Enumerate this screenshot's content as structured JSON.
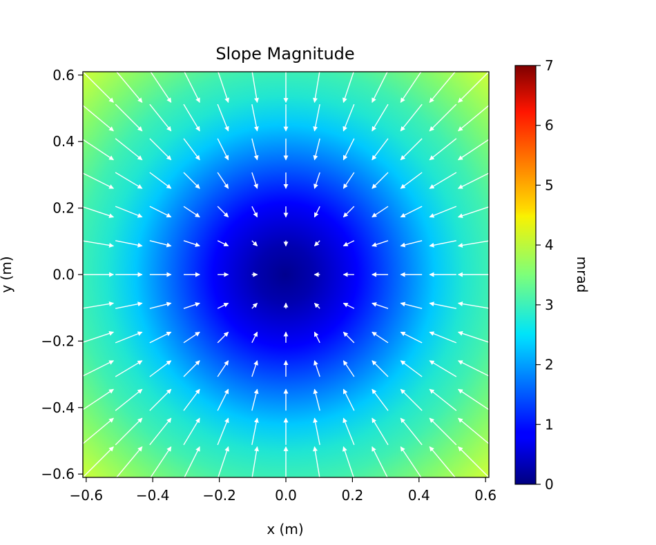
{
  "chart_data": {
    "type": "heatmap",
    "title": "Slope Magnitude",
    "xlabel": "x (m)",
    "ylabel": "y (m)",
    "xlim": [
      -0.61,
      0.61
    ],
    "ylim": [
      -0.61,
      0.61
    ],
    "xticks": [
      -0.6,
      -0.4,
      -0.2,
      0.0,
      0.2,
      0.4,
      0.6
    ],
    "xtick_labels": [
      "−0.6",
      "−0.4",
      "−0.2",
      "0.0",
      "0.2",
      "0.4",
      "0.6"
    ],
    "yticks": [
      -0.6,
      -0.4,
      -0.2,
      0.0,
      0.2,
      0.4,
      0.6
    ],
    "ytick_labels": [
      "−0.6",
      "−0.4",
      "−0.2",
      "0.0",
      "0.2",
      "0.4",
      "0.6"
    ],
    "colormap": "jet",
    "colorbar": {
      "label": "mrad",
      "range": [
        0,
        7
      ],
      "ticks": [
        0,
        1,
        2,
        3,
        4,
        5,
        6,
        7
      ],
      "tick_labels": [
        "0",
        "1",
        "2",
        "3",
        "4",
        "5",
        "6",
        "7"
      ]
    },
    "field": {
      "description_of_values": "slope magnitude grows from ~0 mrad at center to ~4.2 mrad at corners",
      "center_value": 0.0,
      "edge_midpoint_value": 2.9,
      "corner_value": 4.2
    },
    "quiver": {
      "color": "#ffffff",
      "direction": "radial-inward",
      "x": [
        -0.566,
        -0.472,
        -0.377,
        -0.283,
        -0.189,
        -0.094,
        0.0,
        0.094,
        0.189,
        0.283,
        0.377,
        0.472,
        0.566
      ],
      "y": [
        -0.566,
        -0.472,
        -0.377,
        -0.283,
        -0.189,
        -0.094,
        0.0,
        0.094,
        0.189,
        0.283,
        0.377,
        0.472,
        0.566
      ]
    }
  }
}
